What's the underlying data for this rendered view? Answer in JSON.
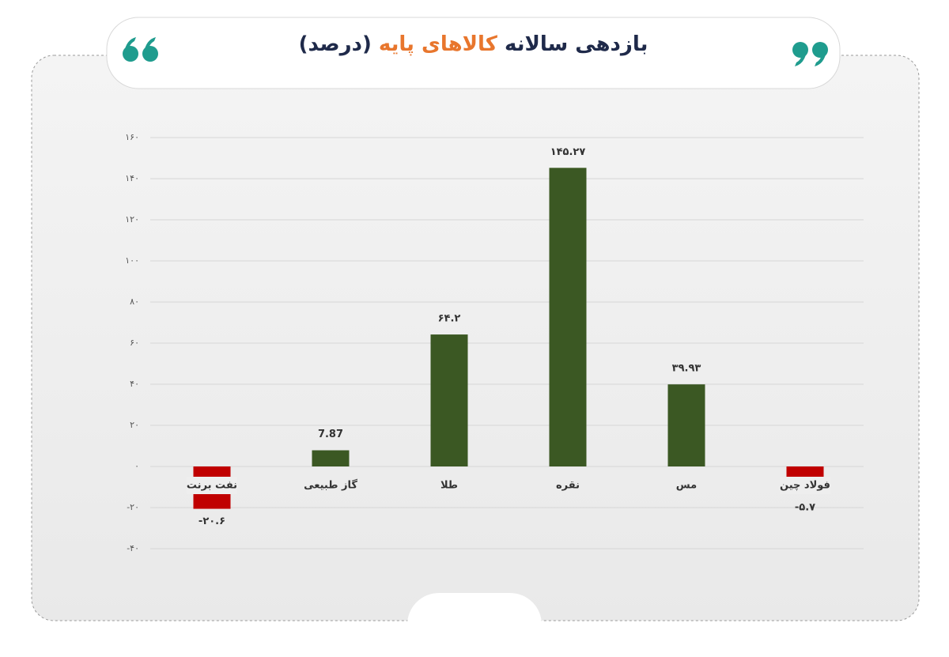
{
  "chart_data": {
    "type": "bar",
    "title": "بازدهی سالانه",
    "title_highlight": "کالاهای پایه",
    "title_suffix": "(درصد)",
    "categories": [
      "نفت برنت",
      "گاز طبیعی",
      "طلا",
      "نقره",
      "مس",
      "فولاد چین"
    ],
    "values": [
      -20.6,
      7.87,
      64.2,
      145.27,
      39.93,
      -5.7
    ],
    "value_labels": [
      "-۲۰.۶",
      "7.87",
      "۶۴.۲",
      "۱۴۵.۲۷",
      "۳۹.۹۳",
      "-۵.۷"
    ],
    "positive_color": "#3b5823",
    "negative_color": "#c00000",
    "ylim": [
      -40,
      160
    ],
    "yticks": [
      {
        "value": 160,
        "label": "۱۶۰"
      },
      {
        "value": 140,
        "label": "۱۴۰"
      },
      {
        "value": 120,
        "label": "۱۲۰"
      },
      {
        "value": 100,
        "label": "۱۰۰"
      },
      {
        "value": 80,
        "label": "۸۰"
      },
      {
        "value": 60,
        "label": "۶۰"
      },
      {
        "value": 40,
        "label": "۴۰"
      },
      {
        "value": 20,
        "label": "۲۰"
      },
      {
        "value": 0,
        "label": "۰"
      },
      {
        "value": -20,
        "label": "-۲۰"
      },
      {
        "value": -40,
        "label": "-۴۰"
      }
    ],
    "grid": true
  }
}
